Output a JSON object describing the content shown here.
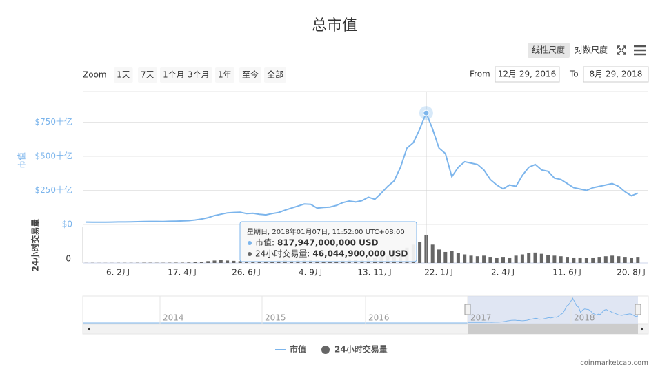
{
  "title": "总市值",
  "toolbar": {
    "scales": [
      "线性尺度",
      "对数尺度"
    ]
  },
  "range_selector": {
    "zoom_label": "Zoom",
    "buttons": [
      "1天",
      "7天",
      "1个月",
      "3个月",
      "1年",
      "至今",
      "全部"
    ],
    "from_label": "From",
    "from": "12月 29, 2016",
    "to_label": "To",
    "to": "8月 29, 2018"
  },
  "chart_data": {
    "type": "line",
    "categories": [
      null,
      null,
      null,
      null,
      null,
      "6. 2月",
      null,
      null,
      null,
      null,
      null,
      null,
      null,
      null,
      null,
      "17. 4月",
      null,
      null,
      null,
      null,
      null,
      null,
      null,
      null,
      null,
      "26. 6月",
      null,
      null,
      null,
      null,
      null,
      null,
      null,
      null,
      null,
      "4. 9月",
      null,
      null,
      null,
      null,
      null,
      null,
      null,
      null,
      null,
      "13. 11月",
      null,
      null,
      null,
      null,
      null,
      null,
      null,
      null,
      null,
      "22. 1月",
      null,
      null,
      null,
      null,
      null,
      null,
      null,
      null,
      null,
      "2. 4月",
      null,
      null,
      null,
      null,
      null,
      null,
      null,
      null,
      null,
      "11. 6月",
      null,
      null,
      null,
      null,
      null,
      null,
      null,
      null,
      null,
      "20. 8月",
      null
    ],
    "series": [
      {
        "name": "市值",
        "color": "#7cb5ec",
        "values": [
          17,
          16,
          16,
          16,
          17,
          18,
          18,
          19,
          20,
          21,
          22,
          22,
          21,
          23,
          24,
          26,
          28,
          33,
          40,
          50,
          65,
          75,
          85,
          88,
          90,
          80,
          82,
          75,
          70,
          80,
          88,
          105,
          120,
          135,
          150,
          148,
          120,
          125,
          128,
          140,
          160,
          172,
          165,
          175,
          200,
          185,
          230,
          280,
          320,
          420,
          560,
          600,
          700,
          817.947,
          700,
          560,
          520,
          350,
          420,
          460,
          450,
          440,
          400,
          330,
          290,
          260,
          290,
          280,
          360,
          420,
          440,
          400,
          390,
          340,
          330,
          300,
          270,
          260,
          250,
          270,
          280,
          290,
          300,
          280,
          240,
          210,
          230
        ]
      },
      {
        "name": "24小时交易量",
        "color": "#666666",
        "type": "column",
        "axis": "y2",
        "values": [
          0.2,
          0.3,
          0.2,
          0.2,
          0.2,
          0.3,
          0.3,
          0.3,
          0.4,
          0.5,
          0.5,
          0.4,
          0.4,
          0.5,
          0.6,
          0.6,
          0.8,
          1.2,
          2,
          3,
          4,
          5,
          4,
          3.5,
          3,
          2.5,
          2.5,
          2,
          3,
          3,
          4,
          5,
          4,
          5,
          6,
          5,
          4,
          3,
          3,
          3,
          4,
          6,
          5,
          6,
          9,
          8,
          10,
          12,
          14,
          20,
          25,
          30,
          34,
          46.0449,
          30,
          22,
          18,
          20,
          16,
          14,
          12,
          11,
          12,
          10,
          9,
          10,
          9,
          12,
          14,
          16,
          17,
          15,
          13,
          12,
          11,
          10,
          9,
          9,
          8,
          9,
          10,
          11,
          12,
          11,
          10,
          9,
          10
        ]
      }
    ],
    "ylim": [
      0,
      975
    ],
    "yticks": [
      {
        "value": 0,
        "label": "$0"
      },
      {
        "value": 250,
        "label": "$250十亿"
      },
      {
        "value": 500,
        "label": "$500十亿"
      },
      {
        "value": 750,
        "label": "$750十亿"
      }
    ],
    "y_label": "市值",
    "y2lim": [
      0,
      55
    ],
    "y2ticks": [
      0
    ],
    "y2_label": "24小时交易量",
    "grid": true,
    "tooltip": {
      "header": "星期日, 2018年01月07日, 11:52:00 UTC+08:00",
      "lines": [
        {
          "label": "市值:",
          "value": "817,947,000,000 USD"
        },
        {
          "label": "24小时交易量:",
          "value": "46,044,900,000 USD"
        }
      ]
    }
  },
  "navigator": {
    "labels": [
      "2014",
      "2015",
      "2016",
      "2017",
      "2018"
    ]
  },
  "credit": "coinmarketcap.com"
}
